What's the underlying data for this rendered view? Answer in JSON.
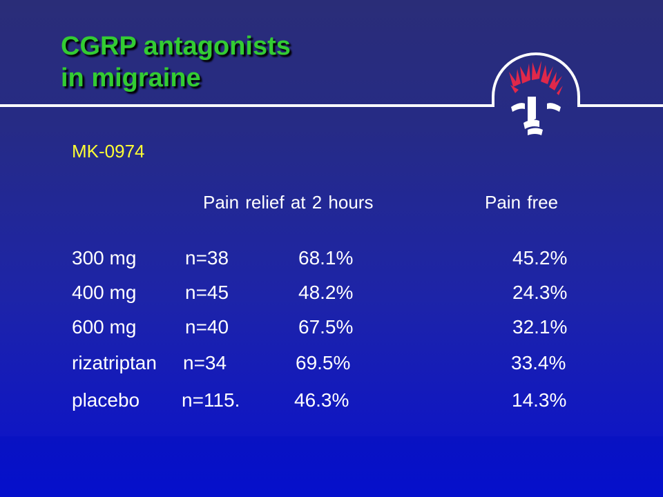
{
  "slide": {
    "title_line1": "CGRP antagonists",
    "title_line2": "in migraine",
    "subtitle": "MK-0974"
  },
  "table": {
    "headers": {
      "pain_relief": "Pain relief at 2 hours",
      "pain_free": "Pain free"
    },
    "rows": [
      {
        "dose": "300 mg",
        "n": "n=38",
        "relief": "68.1%",
        "free": "45.2%"
      },
      {
        "dose": "400 mg",
        "n": "n=45",
        "relief": "48.2%",
        "free": "24.3%"
      },
      {
        "dose": "600 mg",
        "n": "n=40",
        "relief": "67.5%",
        "free": "32.1%"
      },
      {
        "dose": "rizatriptan",
        "n": "n=34",
        "relief": "69.5%",
        "free": "33.4%"
      },
      {
        "dose": "placebo",
        "n": "n=115.",
        "relief": "46.3%",
        "free": "14.3%"
      }
    ]
  },
  "colors": {
    "title": "#33cc33",
    "subtitle": "#ffff33",
    "text": "#ffffff",
    "logo_accent": "#e0284a"
  },
  "logo": {
    "icon": "brain-tree-logo-icon"
  }
}
